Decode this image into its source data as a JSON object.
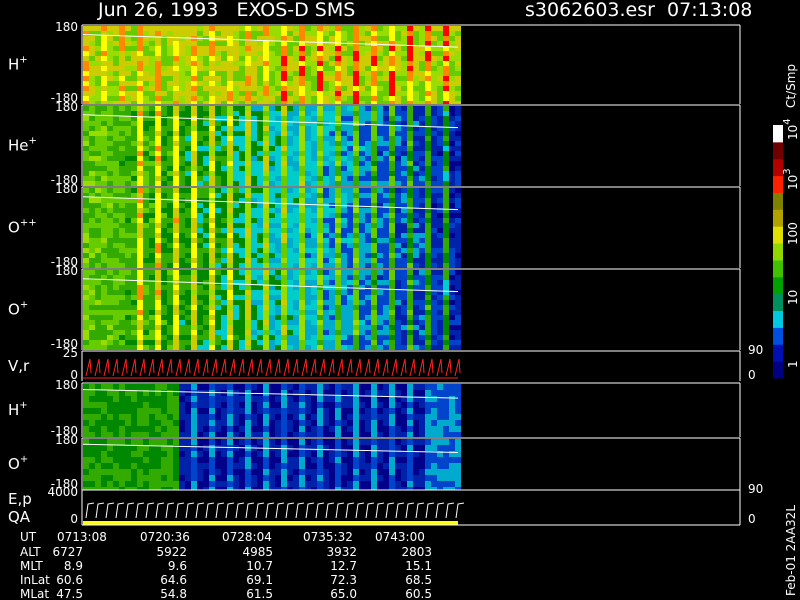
{
  "header": {
    "title": "Jun 26, 1993   EXOS-D SMS",
    "file": "s3062603.esr  07:13:08"
  },
  "panels": [
    {
      "label": "H",
      "sup": "+",
      "ticks": [
        "180",
        "-180"
      ]
    },
    {
      "label": "He",
      "sup": "+",
      "ticks": [
        "180",
        "-180"
      ]
    },
    {
      "label": "O",
      "sup": "++",
      "ticks": [
        "180",
        "-180"
      ]
    },
    {
      "label": "O",
      "sup": "+",
      "ticks": [
        "180",
        "-180"
      ]
    },
    {
      "label": "V,r",
      "ticks": [
        "25",
        "0"
      ],
      "right_ticks": [
        "90",
        "0"
      ]
    },
    {
      "label": "H",
      "sup": "+",
      "ticks": [
        "180",
        "-180"
      ]
    },
    {
      "label": "O",
      "sup": "+",
      "ticks": [
        "180",
        "-180"
      ]
    },
    {
      "label": "E,p",
      "label2": "QA",
      "ticks": [
        "4000",
        "0"
      ],
      "right_ticks": [
        "90",
        "0"
      ]
    }
  ],
  "colorbar": {
    "unit": "Ct/Smp",
    "labels": [
      {
        "text": "10",
        "sup": "4"
      },
      {
        "text": "10",
        "sup": "3"
      },
      {
        "text": "100"
      },
      {
        "text": "10"
      },
      {
        "text": "1"
      }
    ]
  },
  "footer": {
    "rows": [
      {
        "label": "UT",
        "values": [
          "0713:08",
          "0720:36",
          "0728:04",
          "0735:32",
          "0743:00"
        ]
      },
      {
        "label": "ALT",
        "values": [
          "6727",
          "5922",
          "4985",
          "3932",
          "2803"
        ]
      },
      {
        "label": "MLT",
        "values": [
          "8.9",
          "9.6",
          "10.7",
          "12.7",
          "15.1"
        ]
      },
      {
        "label": "InLat",
        "values": [
          "60.6",
          "64.6",
          "69.1",
          "72.3",
          "68.5"
        ]
      },
      {
        "label": "MLat",
        "values": [
          "47.5",
          "54.8",
          "61.5",
          "65.0",
          "60.5"
        ]
      }
    ]
  },
  "version": "Feb-01 2AA32L"
}
